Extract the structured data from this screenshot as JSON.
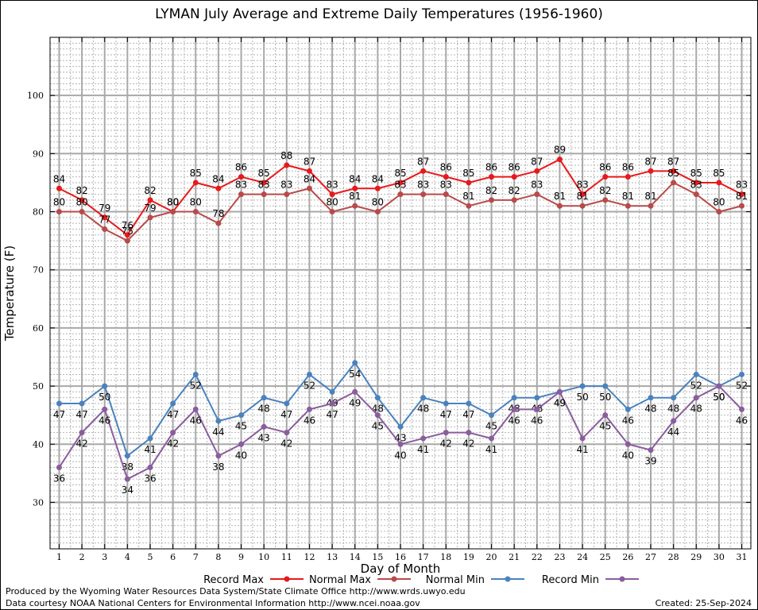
{
  "chart_data": {
    "type": "line",
    "title": "LYMAN July Average and Extreme Daily Temperatures (1956-1960)",
    "xlabel": "Day of Month",
    "ylabel": "Temperature (F)",
    "ylim": [
      22,
      110
    ],
    "yticks": [
      30,
      40,
      50,
      60,
      70,
      80,
      90,
      100
    ],
    "xlim": [
      0.6,
      31.4
    ],
    "grid": true,
    "legend_position": "bottom",
    "x": [
      1,
      2,
      3,
      4,
      5,
      6,
      7,
      8,
      9,
      10,
      11,
      12,
      13,
      14,
      15,
      16,
      17,
      18,
      19,
      20,
      21,
      22,
      23,
      24,
      25,
      26,
      27,
      28,
      29,
      30,
      31
    ],
    "series": [
      {
        "name": "Record Max",
        "color": "#e8191c",
        "values": [
          84,
          82,
          79,
          76,
          82,
          80,
          85,
          84,
          86,
          85,
          88,
          87,
          83,
          84,
          84,
          85,
          87,
          86,
          85,
          86,
          86,
          87,
          89,
          83,
          86,
          86,
          87,
          87,
          85,
          85,
          83
        ]
      },
      {
        "name": "Normal Max",
        "color": "#b94a4a",
        "values": [
          80,
          80,
          77,
          75,
          79,
          80,
          80,
          78,
          83,
          83,
          83,
          84,
          80,
          81,
          80,
          83,
          83,
          83,
          81,
          82,
          82,
          83,
          81,
          81,
          82,
          81,
          81,
          85,
          83,
          80,
          81
        ]
      },
      {
        "name": "Normal Min",
        "color": "#4a82bf",
        "values": [
          47,
          47,
          50,
          38,
          41,
          47,
          52,
          44,
          45,
          48,
          47,
          52,
          49,
          54,
          48,
          43,
          48,
          47,
          47,
          45,
          48,
          48,
          49,
          50,
          50,
          46,
          48,
          48,
          52,
          50,
          52
        ]
      },
      {
        "name": "Record Min",
        "color": "#8b5c9e",
        "values": [
          36,
          42,
          46,
          34,
          36,
          42,
          46,
          38,
          40,
          43,
          42,
          46,
          47,
          49,
          45,
          40,
          41,
          42,
          42,
          41,
          46,
          46,
          49,
          41,
          45,
          40,
          39,
          44,
          48,
          50,
          46
        ]
      }
    ]
  },
  "footer": {
    "credit_line1": "Produced by the Wyoming Water Resources Data System/State Climate Office http://www.wrds.uwyo.edu",
    "credit_line2": "Data courtesy NOAA National Centers for Environmental Information http://www.ncei.noaa.gov",
    "created": "Created:  25-Sep-2024"
  }
}
